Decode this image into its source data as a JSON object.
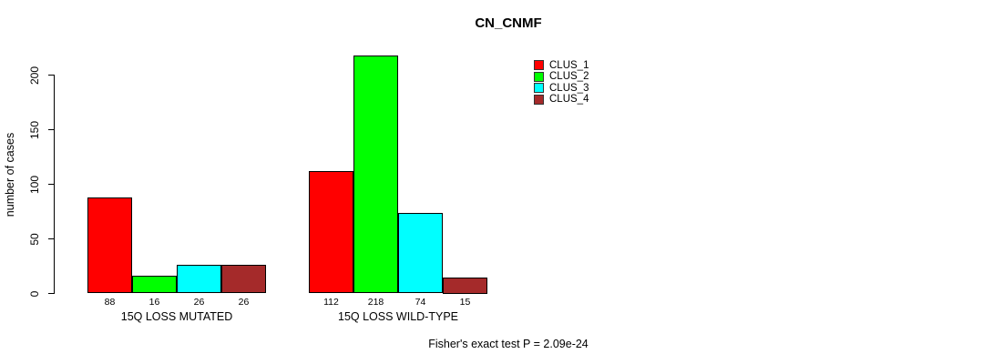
{
  "chart_data": {
    "type": "bar",
    "title": "CN_CNMF",
    "ylabel": "number of cases",
    "xlabel": "",
    "ylim": [
      0,
      200
    ],
    "yticks": [
      0,
      50,
      100,
      150,
      200
    ],
    "categories": [
      "15Q LOSS MUTATED",
      "15Q LOSS WILD-TYPE"
    ],
    "series": [
      {
        "name": "CLUS_1",
        "color": "#ff0000",
        "values": [
          88,
          112
        ]
      },
      {
        "name": "CLUS_2",
        "color": "#00ff00",
        "values": [
          16,
          218
        ]
      },
      {
        "name": "CLUS_3",
        "color": "#00ffff",
        "values": [
          26,
          74
        ]
      },
      {
        "name": "CLUS_4",
        "color": "#a52a2a",
        "values": [
          26,
          15
        ]
      }
    ],
    "bar_labels_shown": true,
    "grid": false,
    "legend_position": "top-right",
    "annotation": "Fisher's exact test P = 2.09e-24"
  }
}
